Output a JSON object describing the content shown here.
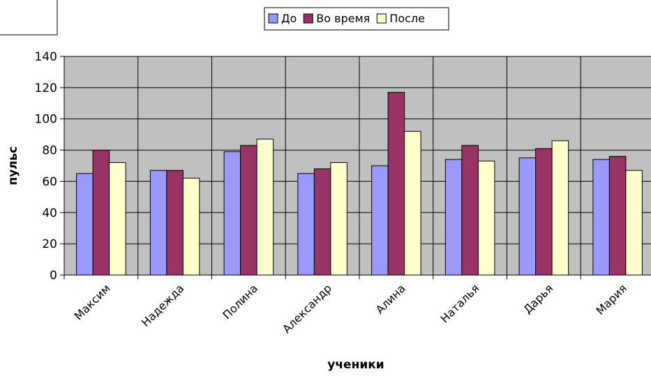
{
  "chart_data": {
    "type": "bar",
    "categories": [
      "Максим",
      "Надежда",
      "Полина",
      "Александр",
      "Алина",
      "Наталья",
      "Дарья",
      "Мария"
    ],
    "series": [
      {
        "name": "До",
        "values": [
          65,
          67,
          79,
          65,
          70,
          74,
          75,
          74
        ],
        "color": "#9999ff"
      },
      {
        "name": "Во время",
        "values": [
          80,
          67,
          83,
          68,
          117,
          83,
          81,
          76
        ],
        "color": "#993366"
      },
      {
        "name": "После",
        "values": [
          72,
          62,
          87,
          72,
          92,
          73,
          86,
          67
        ],
        "color": "#ffffcc"
      }
    ],
    "xlabel": "ученики",
    "ylabel": "пульс",
    "ylim": [
      0,
      140
    ],
    "yticks": [
      0,
      20,
      40,
      60,
      80,
      100,
      120,
      140
    ],
    "grid": true,
    "plot_background": "#c0c0c0",
    "legend_position": "top-center"
  }
}
